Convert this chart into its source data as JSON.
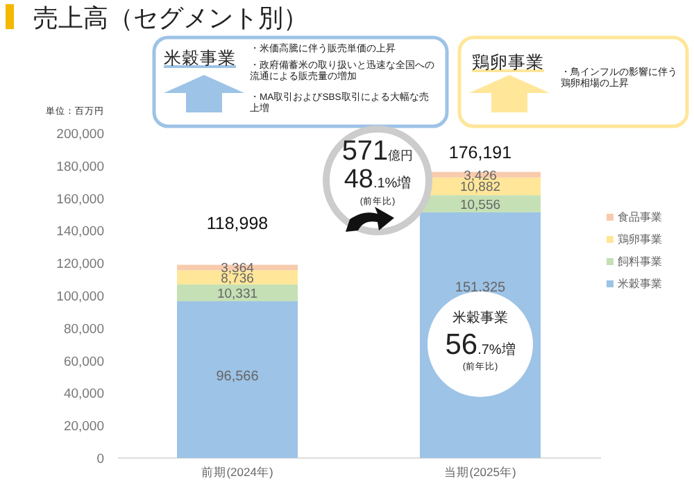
{
  "chart_data": {
    "type": "bar",
    "stacked": true,
    "title": "売上高（セグメント別）",
    "categories": [
      "前期(2024年)",
      "当期(2025年)"
    ],
    "series": [
      {
        "name": "米穀事業",
        "color": "#9dc3e6",
        "values": [
          96566,
          151325
        ],
        "value_labels": [
          "96,566",
          "151,325"
        ]
      },
      {
        "name": "飼料事業",
        "color": "#c5e0b4",
        "values": [
          10331,
          10556
        ],
        "value_labels": [
          "10,331",
          "10,556"
        ]
      },
      {
        "name": "鶏卵事業",
        "color": "#ffe699",
        "values": [
          8736,
          10882
        ],
        "value_labels": [
          "8,736",
          "10,882"
        ]
      },
      {
        "name": "食品事業",
        "color": "#f8cbad",
        "values": [
          3364,
          3426
        ],
        "value_labels": [
          "3,364",
          "3,426"
        ]
      }
    ],
    "totals": [
      "118,998",
      "176,191"
    ],
    "ylim": [
      0,
      200000
    ],
    "yticks": [
      0,
      {
        "value": 20000,
        "label": "20,000"
      },
      {
        "value": 40000,
        "label": "40,000"
      },
      {
        "value": 60000,
        "label": "60,000"
      },
      {
        "value": 80000,
        "label": "80,000"
      },
      {
        "value": 100000,
        "label": "100,000"
      },
      {
        "value": 120000,
        "label": "120,000"
      },
      {
        "value": 140000,
        "label": "140,000"
      },
      {
        "value": 160000,
        "label": "160,000"
      },
      {
        "value": 180000,
        "label": "180,000"
      },
      {
        "value": 200000,
        "label": "200,000"
      }
    ],
    "legend": "right",
    "annotations": [
      "単位：百万円",
      "米穀事業",
      "・米価高騰に伴う販売単価の上昇",
      "・政府備蓄米の取り扱いと迅速な全国への流通による販売量の増加",
      "・MA取引およびSBS取引による大幅な売上増",
      "鶏卵事業",
      "・鳥インフルの影響に伴う鶏卵相場の上昇",
      "571億円",
      "48.1%増",
      "(前年比)",
      "米穀事業",
      "56.7%増",
      "(前年比)"
    ]
  }
}
